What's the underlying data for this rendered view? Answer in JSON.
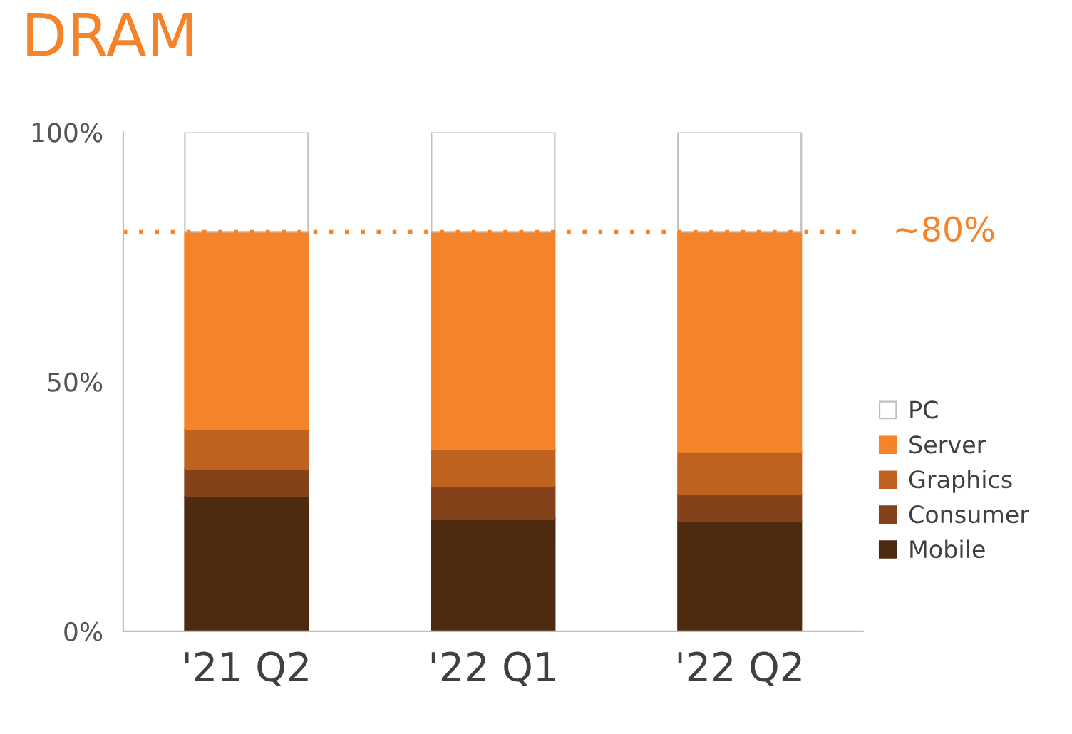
{
  "chart_data": {
    "type": "bar",
    "title": "DRAM",
    "stacked": true,
    "categories": [
      "'21 Q2",
      "'22 Q1",
      "'22 Q2"
    ],
    "series": [
      {
        "name": "Mobile",
        "color": "#4d2a10",
        "values": [
          27,
          22.5,
          22
        ]
      },
      {
        "name": "Consumer",
        "color": "#84421a",
        "values": [
          5.5,
          6.5,
          5.5
        ]
      },
      {
        "name": "Graphics",
        "color": "#c0621f",
        "values": [
          8,
          7.5,
          8.5
        ]
      },
      {
        "name": "Server",
        "color": "#f5832a",
        "values": [
          39.5,
          43.5,
          44
        ]
      },
      {
        "name": "PC",
        "color": "#ffffff",
        "values": [
          20,
          20,
          20
        ]
      }
    ],
    "ylim": [
      0,
      100
    ],
    "yticks": [
      {
        "value": 0,
        "label": "0%"
      },
      {
        "value": 50,
        "label": "50%"
      },
      {
        "value": 100,
        "label": "100%"
      }
    ],
    "ref_lines": [
      {
        "axis": "y",
        "value": 80,
        "label": "~80%",
        "color": "#f5832a",
        "line_style": "dotted"
      }
    ],
    "legend": "right",
    "grid": false
  }
}
